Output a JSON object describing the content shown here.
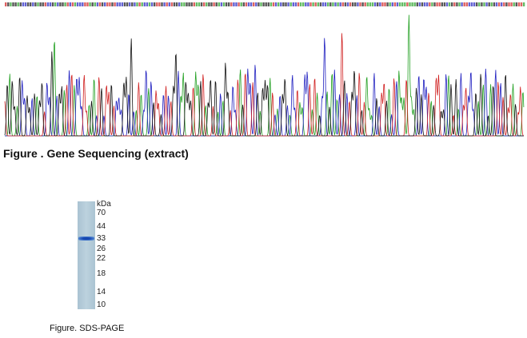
{
  "chromatogram": {
    "caption": "Figure . Gene Sequencing (extract)"
  },
  "gel": {
    "unit": "kDa",
    "markers": [
      "70",
      "44",
      "33",
      "26",
      "22",
      "18",
      "14",
      "10"
    ],
    "caption": "Figure. SDS-PAGE"
  }
}
